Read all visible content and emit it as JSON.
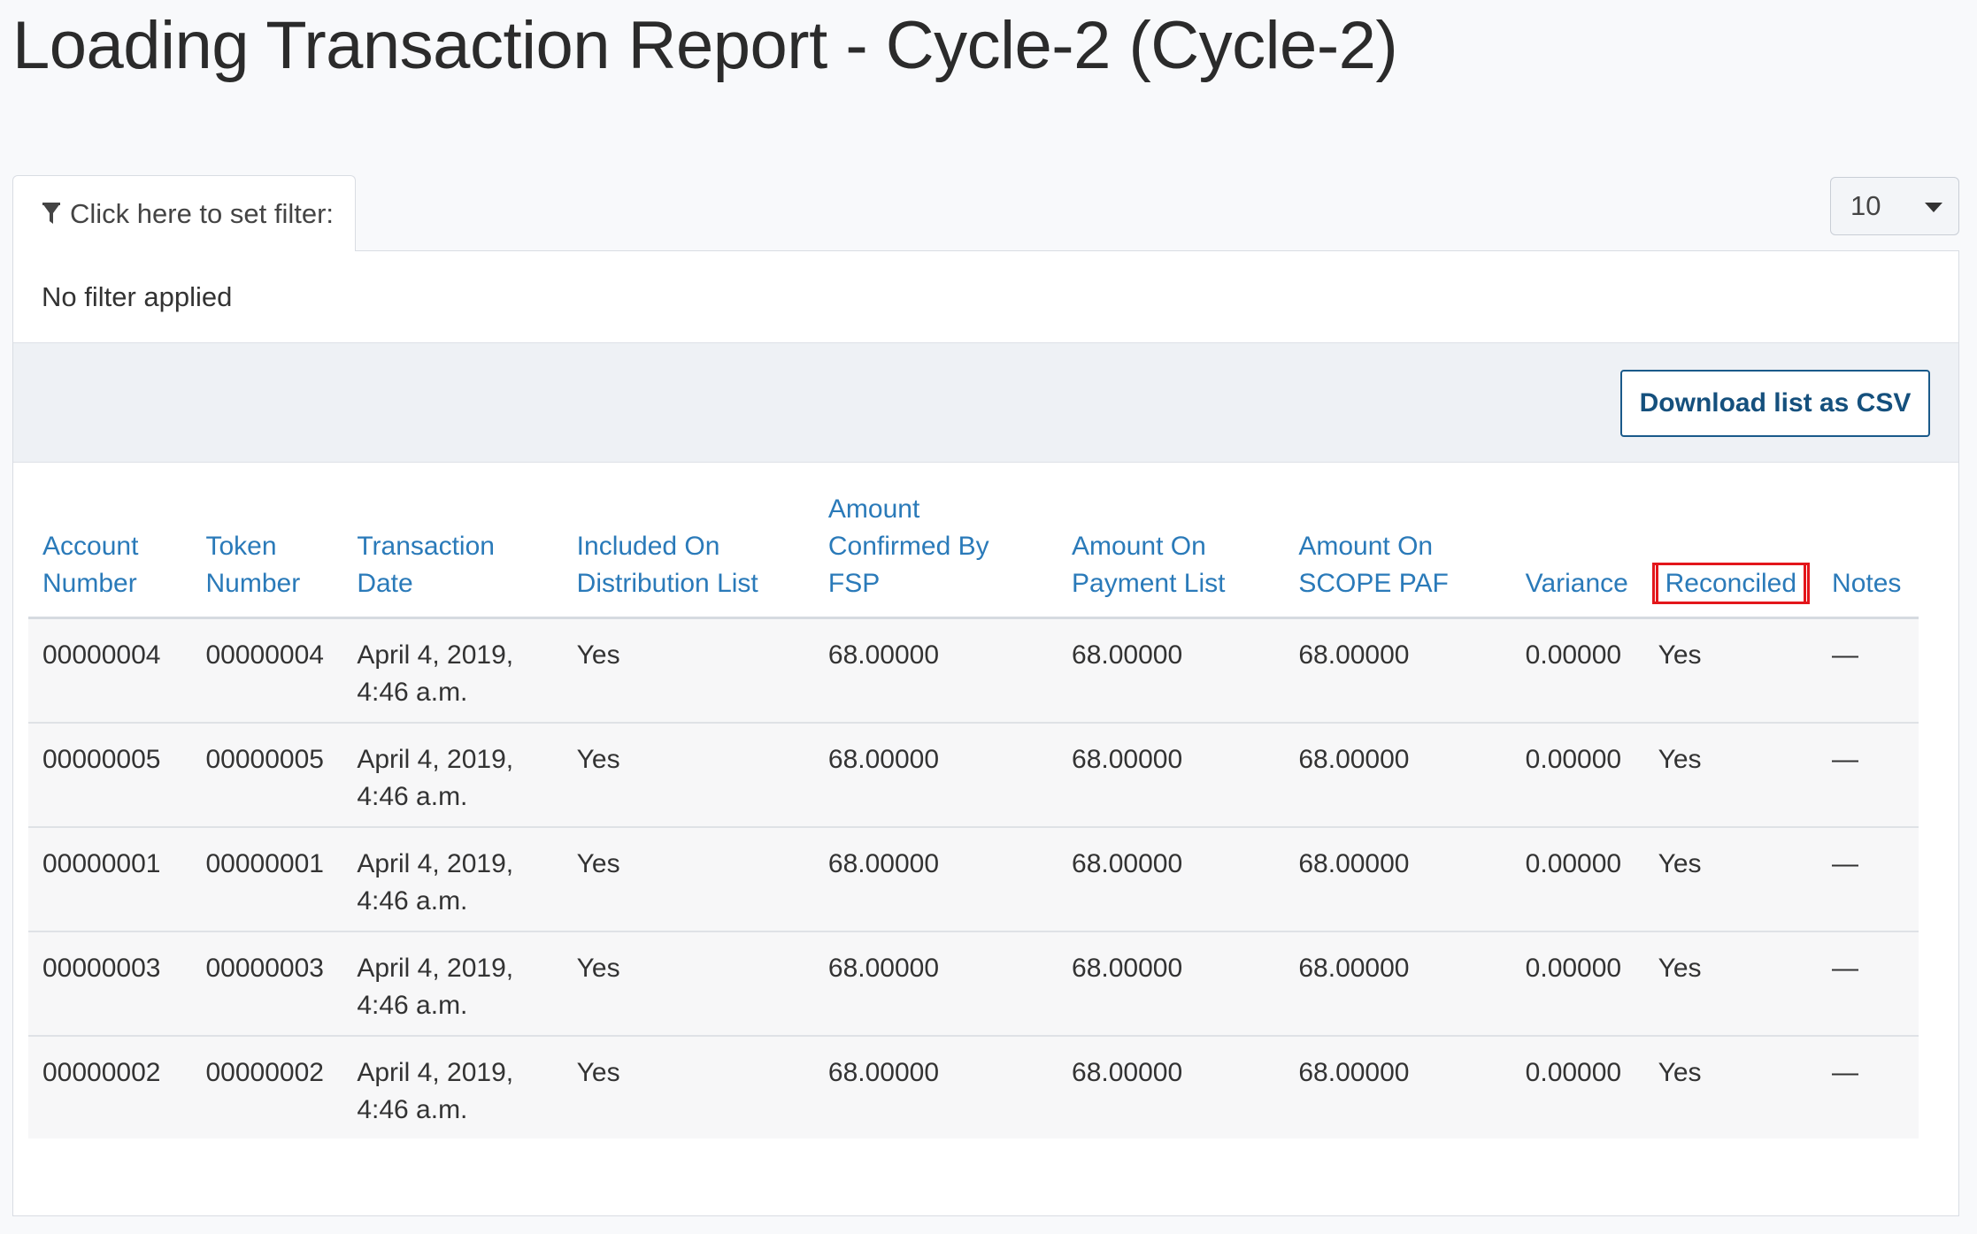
{
  "page": {
    "title": "Loading Transaction Report - Cycle-2 (Cycle-2)"
  },
  "filter": {
    "tab_label": "Click here to set filter:",
    "status": "No filter applied",
    "icon": "filter-icon"
  },
  "page_size": {
    "selected": "10"
  },
  "toolbar": {
    "download_csv_label": "Download list as CSV"
  },
  "table": {
    "columns": [
      {
        "key": "account",
        "label": [
          "Account",
          "Number"
        ]
      },
      {
        "key": "token",
        "label": [
          "Token",
          "Number"
        ]
      },
      {
        "key": "date",
        "label": [
          "Transaction",
          "Date"
        ]
      },
      {
        "key": "included",
        "label": [
          "Included On",
          "Distribution List"
        ]
      },
      {
        "key": "confirmed",
        "label": [
          "Amount",
          "Confirmed By",
          "FSP"
        ]
      },
      {
        "key": "payment",
        "label": [
          "Amount On",
          "Payment List"
        ]
      },
      {
        "key": "paf",
        "label": [
          "Amount On",
          "SCOPE PAF"
        ]
      },
      {
        "key": "variance",
        "label": [
          "Variance"
        ]
      },
      {
        "key": "reconciled",
        "label": [
          "Reconciled"
        ],
        "highlighted": true,
        "highlight_color": "#e3161b"
      },
      {
        "key": "notes",
        "label": [
          "Notes"
        ]
      }
    ],
    "rows": [
      {
        "account": "00000004",
        "token": "00000004",
        "date": [
          "April 4, 2019,",
          "4:46 a.m."
        ],
        "included": "Yes",
        "confirmed": "68.00000",
        "payment": "68.00000",
        "paf": "68.00000",
        "variance": "0.00000",
        "reconciled": "Yes",
        "notes": "—"
      },
      {
        "account": "00000005",
        "token": "00000005",
        "date": [
          "April 4, 2019,",
          "4:46 a.m."
        ],
        "included": "Yes",
        "confirmed": "68.00000",
        "payment": "68.00000",
        "paf": "68.00000",
        "variance": "0.00000",
        "reconciled": "Yes",
        "notes": "—"
      },
      {
        "account": "00000001",
        "token": "00000001",
        "date": [
          "April 4, 2019,",
          "4:46 a.m."
        ],
        "included": "Yes",
        "confirmed": "68.00000",
        "payment": "68.00000",
        "paf": "68.00000",
        "variance": "0.00000",
        "reconciled": "Yes",
        "notes": "—"
      },
      {
        "account": "00000003",
        "token": "00000003",
        "date": [
          "April 4, 2019,",
          "4:46 a.m."
        ],
        "included": "Yes",
        "confirmed": "68.00000",
        "payment": "68.00000",
        "paf": "68.00000",
        "variance": "0.00000",
        "reconciled": "Yes",
        "notes": "—"
      },
      {
        "account": "00000002",
        "token": "00000002",
        "date": [
          "April 4, 2019,",
          "4:46 a.m."
        ],
        "included": "Yes",
        "confirmed": "68.00000",
        "payment": "68.00000",
        "paf": "68.00000",
        "variance": "0.00000",
        "reconciled": "Yes",
        "notes": "—"
      }
    ]
  },
  "colors": {
    "link": "#2a7ab9",
    "button_border": "#1a5a8a",
    "highlight": "#e3161b"
  }
}
